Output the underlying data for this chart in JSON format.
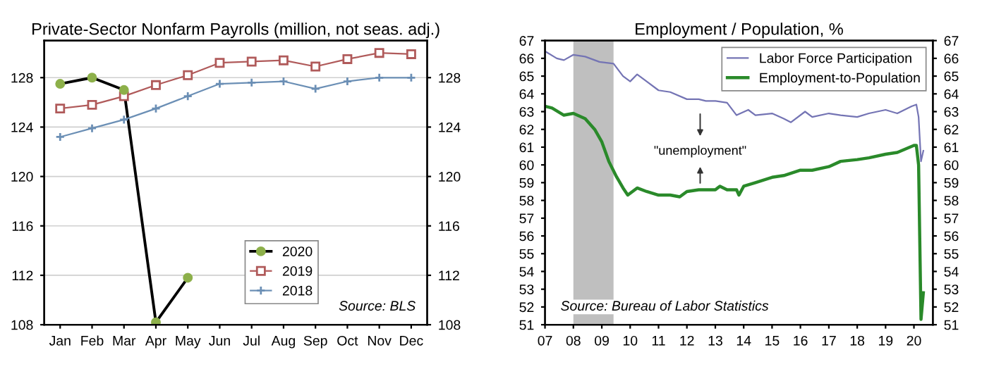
{
  "chart_data": [
    {
      "type": "line",
      "title": "Private-Sector Nonfarm Payrolls (million, not seas. adj.)",
      "categories": [
        "Jan",
        "Feb",
        "Mar",
        "Apr",
        "May",
        "Jun",
        "Jul",
        "Aug",
        "Sep",
        "Oct",
        "Nov",
        "Dec"
      ],
      "series": [
        {
          "name": "2020",
          "color": "#000000",
          "colors": [
            "#8db04a",
            "#8db04a",
            "#8db04a",
            "#8db04a",
            "#8db04a",
            null,
            null,
            null,
            null,
            null,
            null,
            null
          ],
          "marker": "circle",
          "values": [
            127.5,
            128.0,
            127.0,
            108.2,
            111.8,
            null,
            null,
            null,
            null,
            null,
            null,
            null
          ]
        },
        {
          "name": "2019",
          "color": "#b05a5a",
          "marker": "square",
          "values": [
            125.5,
            125.8,
            126.5,
            127.4,
            128.2,
            129.2,
            129.3,
            129.4,
            128.9,
            129.5,
            130.0,
            129.9
          ]
        },
        {
          "name": "2018",
          "color": "#6b8fb5",
          "marker": "cross",
          "values": [
            123.2,
            123.9,
            124.6,
            125.5,
            126.5,
            127.5,
            127.6,
            127.7,
            127.1,
            127.7,
            128.0,
            128.0
          ]
        }
      ],
      "ylim": [
        108,
        131
      ],
      "yticks": [
        108,
        112,
        116,
        120,
        124,
        128
      ],
      "y2lim": [
        108,
        131
      ],
      "y2ticks": [
        108,
        112,
        116,
        120,
        124,
        128
      ],
      "grid": "y",
      "legend": "bottom",
      "annotations": [
        "Source: BLS"
      ]
    },
    {
      "type": "line",
      "title": "Employment / Population, %",
      "series": [
        {
          "name": "Labor Force Participation",
          "color": "#7474b4",
          "x": [
            "2007-01",
            "2007-06",
            "2007-09",
            "2008-01",
            "2008-06",
            "2008-12",
            "2009-06",
            "2009-10",
            "2010-01",
            "2010-04",
            "2010-08",
            "2011-01",
            "2011-06",
            "2012-01",
            "2012-06",
            "2012-09",
            "2013-01",
            "2013-06",
            "2013-10",
            "2014-03",
            "2014-06",
            "2015-01",
            "2015-06",
            "2015-09",
            "2016-03",
            "2016-06",
            "2017-01",
            "2017-06",
            "2018-01",
            "2018-06",
            "2019-01",
            "2019-06",
            "2019-12",
            "2020-02",
            "2020-03",
            "2020-04",
            "2020-05"
          ],
          "values": [
            66.4,
            66.0,
            65.9,
            66.2,
            66.1,
            65.8,
            65.7,
            65.0,
            64.7,
            65.1,
            64.7,
            64.2,
            64.1,
            63.7,
            63.7,
            63.6,
            63.6,
            63.5,
            62.8,
            63.1,
            62.8,
            62.9,
            62.6,
            62.4,
            63.0,
            62.7,
            62.9,
            62.8,
            62.7,
            62.9,
            63.1,
            62.9,
            63.3,
            63.4,
            62.7,
            60.2,
            60.8
          ]
        },
        {
          "name": "Employment-to-Population",
          "color": "#2a8a2a",
          "x": [
            "2007-01",
            "2007-04",
            "2007-09",
            "2008-01",
            "2008-06",
            "2008-10",
            "2009-01",
            "2009-04",
            "2009-07",
            "2009-10",
            "2009-12",
            "2010-04",
            "2010-08",
            "2011-01",
            "2011-06",
            "2011-10",
            "2012-01",
            "2012-06",
            "2013-01",
            "2013-03",
            "2013-06",
            "2013-10",
            "2013-11",
            "2014-01",
            "2014-06",
            "2015-01",
            "2015-06",
            "2016-01",
            "2016-06",
            "2017-01",
            "2017-06",
            "2018-01",
            "2018-06",
            "2019-01",
            "2019-06",
            "2020-01",
            "2020-02",
            "2020-03",
            "2020-04",
            "2020-05"
          ],
          "values": [
            63.3,
            63.2,
            62.8,
            62.9,
            62.6,
            62.0,
            61.3,
            60.2,
            59.4,
            58.7,
            58.3,
            58.7,
            58.5,
            58.3,
            58.3,
            58.2,
            58.5,
            58.6,
            58.6,
            58.8,
            58.6,
            58.6,
            58.3,
            58.8,
            59.0,
            59.3,
            59.4,
            59.7,
            59.7,
            59.9,
            60.2,
            60.3,
            60.4,
            60.6,
            60.7,
            61.1,
            61.1,
            60.0,
            51.3,
            52.8
          ]
        }
      ],
      "xlim": [
        "2007-01",
        "2020-09"
      ],
      "xticks": [
        {
          "value": "2007-01",
          "label": "07"
        },
        {
          "value": "2008-01",
          "label": "08"
        },
        {
          "value": "2009-01",
          "label": "09"
        },
        {
          "value": "2010-01",
          "label": "10"
        },
        {
          "value": "2011-01",
          "label": "11"
        },
        {
          "value": "2012-01",
          "label": "12"
        },
        {
          "value": "2013-01",
          "label": "13"
        },
        {
          "value": "2014-01",
          "label": "14"
        },
        {
          "value": "2015-01",
          "label": "15"
        },
        {
          "value": "2016-01",
          "label": "16"
        },
        {
          "value": "2017-01",
          "label": "17"
        },
        {
          "value": "2018-01",
          "label": "18"
        },
        {
          "value": "2019-01",
          "label": "19"
        },
        {
          "value": "2020-01",
          "label": "20"
        }
      ],
      "ylim": [
        51,
        67
      ],
      "yticks": [
        51,
        52,
        53,
        54,
        55,
        56,
        57,
        58,
        59,
        60,
        61,
        62,
        63,
        64,
        65,
        66,
        67
      ],
      "y2lim": [
        51,
        67
      ],
      "y2ticks": [
        51,
        52,
        53,
        54,
        55,
        56,
        57,
        58,
        59,
        60,
        61,
        62,
        63,
        64,
        65,
        66,
        67
      ],
      "bands": [
        {
          "axis": "x",
          "from": "2008-01",
          "to": "2009-06",
          "color": "#bfbfbf"
        }
      ],
      "grid": false,
      "legend": "top right",
      "annotations": [
        "\"unemployment\"",
        "Source: Bureau of Labor Statistics"
      ]
    }
  ]
}
